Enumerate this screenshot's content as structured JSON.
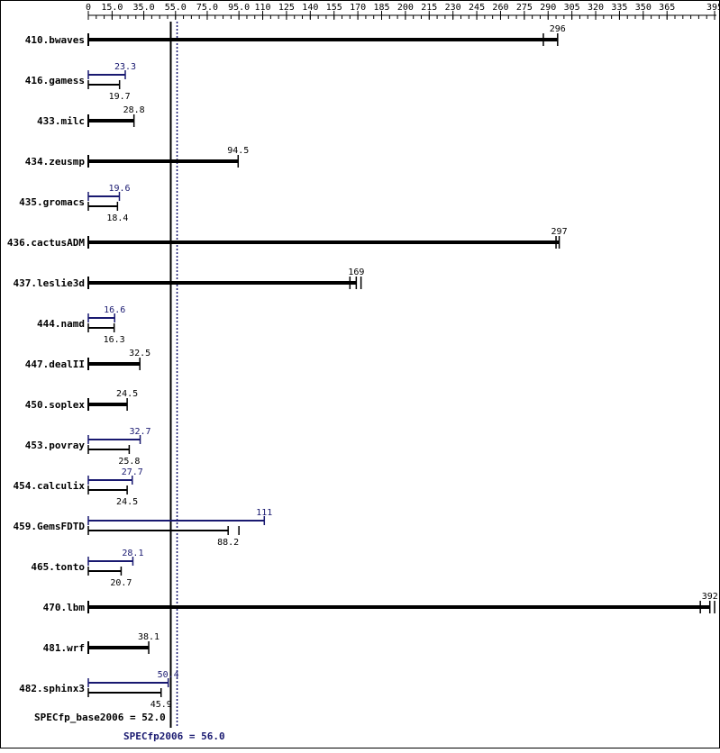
{
  "chart_data": {
    "type": "bar",
    "orientation": "horizontal",
    "xlim": [
      0,
      395
    ],
    "x_ticks": [
      "0",
      "15.0",
      "35.0",
      "55.0",
      "75.0",
      "95.0",
      "110",
      "125",
      "140",
      "155",
      "170",
      "185",
      "200",
      "215",
      "230",
      "245",
      "260",
      "275",
      "290",
      "305",
      "320",
      "335",
      "350",
      "365",
      "395"
    ],
    "x_tick_values": [
      0,
      15,
      35,
      55,
      75,
      95,
      110,
      125,
      140,
      155,
      170,
      185,
      200,
      215,
      230,
      245,
      260,
      275,
      290,
      305,
      320,
      335,
      350,
      365,
      395
    ],
    "categories": [
      "410.bwaves",
      "416.gamess",
      "433.milc",
      "434.zeusmp",
      "435.gromacs",
      "436.cactusADM",
      "437.leslie3d",
      "444.namd",
      "447.dealII",
      "450.soplex",
      "453.povray",
      "454.calculix",
      "459.GemsFDTD",
      "465.tonto",
      "470.lbm",
      "481.wrf",
      "482.sphinx3"
    ],
    "series": [
      {
        "name": "SPECfp_base2006",
        "color": "#000000",
        "values": [
          296,
          19.7,
          28.8,
          94.5,
          18.4,
          297,
          169,
          16.3,
          32.5,
          24.5,
          25.8,
          24.5,
          88.2,
          20.7,
          392,
          38.1,
          45.9
        ],
        "labels": [
          "296",
          "19.7",
          "28.8",
          "94.5",
          "18.4",
          "297",
          "169",
          "16.3",
          "32.5",
          "24.5",
          "25.8",
          "24.5",
          "88.2",
          "20.7",
          "392",
          "38.1",
          "45.9"
        ],
        "spread": [
          [
            287,
            296
          ],
          null,
          null,
          null,
          null,
          [
            295,
            297
          ],
          [
            165,
            169,
            172
          ],
          null,
          null,
          null,
          null,
          null,
          [
            88.2,
            95
          ],
          null,
          [
            386,
            392,
            395
          ],
          null,
          null
        ]
      },
      {
        "name": "SPECfp2006",
        "color": "#191970",
        "values": [
          null,
          23.3,
          null,
          null,
          19.6,
          null,
          null,
          16.6,
          null,
          null,
          32.7,
          27.7,
          111,
          28.1,
          null,
          null,
          50.4
        ],
        "labels": [
          null,
          "23.3",
          null,
          null,
          "19.6",
          null,
          null,
          "16.6",
          null,
          null,
          "32.7",
          "27.7",
          "111",
          "28.1",
          null,
          null,
          "50.4"
        ]
      }
    ],
    "reference_lines": [
      {
        "label": "SPECfp_base2006 = 52.0",
        "value": 52.0,
        "color": "#000000",
        "style": "solid"
      },
      {
        "label": "SPECfp2006 = 56.0",
        "value": 56.0,
        "color": "#191970",
        "style": "dotted"
      }
    ]
  }
}
